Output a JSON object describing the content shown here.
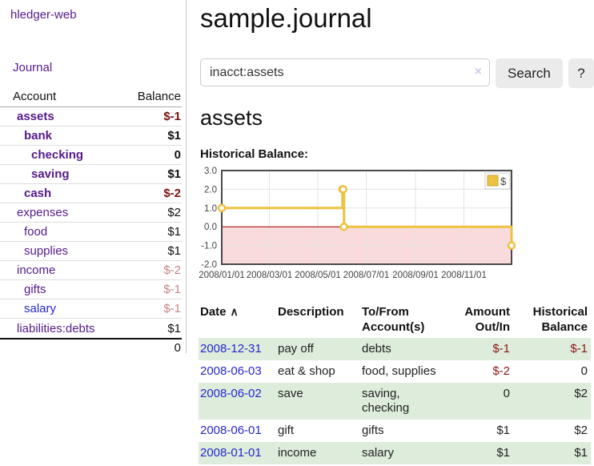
{
  "app": {
    "brand": "hledger-web"
  },
  "sidebar": {
    "nav_journal": "Journal",
    "accounts": {
      "col_account": "Account",
      "col_balance": "Balance",
      "rows": [
        {
          "name": "assets",
          "indent": 1,
          "bold": true,
          "balance": "$-1",
          "balance_color": "neg-strong",
          "link_color": "purple"
        },
        {
          "name": "bank",
          "indent": 2,
          "bold": true,
          "balance": "$1",
          "balance_color": "pos",
          "link_color": "purple"
        },
        {
          "name": "checking",
          "indent": 3,
          "bold": true,
          "balance": "0",
          "balance_color": "pos",
          "link_color": "purple"
        },
        {
          "name": "saving",
          "indent": 3,
          "bold": true,
          "balance": "$1",
          "balance_color": "pos",
          "link_color": "purple"
        },
        {
          "name": "cash",
          "indent": 2,
          "bold": true,
          "balance": "$-2",
          "balance_color": "neg-strong",
          "link_color": "purple"
        },
        {
          "name": "expenses",
          "indent": 1,
          "bold": false,
          "balance": "$2",
          "balance_color": "pos",
          "link_color": "purple"
        },
        {
          "name": "food",
          "indent": 2,
          "bold": false,
          "balance": "$1",
          "balance_color": "pos",
          "link_color": "purple"
        },
        {
          "name": "supplies",
          "indent": 2,
          "bold": false,
          "balance": "$1",
          "balance_color": "pos",
          "link_color": "purple"
        },
        {
          "name": "income",
          "indent": 1,
          "bold": false,
          "balance": "$-2",
          "balance_color": "neg-soft",
          "link_color": "purple"
        },
        {
          "name": "gifts",
          "indent": 2,
          "bold": false,
          "balance": "$-1",
          "balance_color": "neg-soft",
          "link_color": "purple"
        },
        {
          "name": "salary",
          "indent": 2,
          "bold": false,
          "balance": "$-1",
          "balance_color": "neg-soft",
          "link_color": "blue"
        },
        {
          "name": "liabilities:debts",
          "indent": 1,
          "bold": false,
          "balance": "$1",
          "balance_color": "pos",
          "link_color": "purple"
        }
      ],
      "total": "0"
    }
  },
  "main": {
    "title": "sample.journal",
    "search": {
      "value": "inacct:assets",
      "clear_icon": "×",
      "search_button": "Search",
      "help_button": "?"
    },
    "account_heading": "assets",
    "chart_title": "Historical Balance:"
  },
  "chart_data": {
    "type": "line",
    "step": true,
    "title": "Historical Balance of assets",
    "legend_position": "top-right",
    "grid": true,
    "x_min": "2008-01-01",
    "x_max": "2008-12-31",
    "ylim": [
      -2,
      3
    ],
    "y_ticks": [
      3.0,
      2.0,
      1.0,
      0.0,
      -1.0,
      -2.0
    ],
    "x_ticks": [
      {
        "date": "2008-01-01",
        "label": "2008/01/01"
      },
      {
        "date": "2008-03-01",
        "label": "2008/03/01"
      },
      {
        "date": "2008-05-01",
        "label": "2008/05/01"
      },
      {
        "date": "2008-07-01",
        "label": "2008/07/01"
      },
      {
        "date": "2008-09-01",
        "label": "2008/09/01"
      },
      {
        "date": "2008-11-01",
        "label": "2008/11/01"
      }
    ],
    "series": [
      {
        "name": "$",
        "color": "#edc240",
        "points": [
          [
            "2008-01-01",
            1
          ],
          [
            "2008-06-01",
            2
          ],
          [
            "2008-06-02",
            2
          ],
          [
            "2008-06-03",
            0
          ],
          [
            "2008-12-31",
            -1
          ]
        ]
      }
    ],
    "negative_region_fill": "#f9dbdb",
    "zero_line_color": "#990000",
    "grid_color": "#e3e3e3",
    "border_color": "#4a4a4a"
  },
  "register": {
    "headers": {
      "date": "Date",
      "sort_icon": "∧",
      "description": "Description",
      "accounts": "To/From Account(s)",
      "amount": "Amount Out/In",
      "balance": "Historical Balance"
    },
    "rows": [
      {
        "date": "2008-12-31",
        "description": "pay off",
        "accounts": "debts",
        "amount": "$-1",
        "amount_neg": true,
        "balance": "$-1",
        "balance_neg": true
      },
      {
        "date": "2008-06-03",
        "description": "eat & shop",
        "accounts": "food, supplies",
        "amount": "$-2",
        "amount_neg": true,
        "balance": "0",
        "balance_neg": false
      },
      {
        "date": "2008-06-02",
        "description": "save",
        "accounts": "saving, checking",
        "amount": "0",
        "amount_neg": false,
        "balance": "$2",
        "balance_neg": false
      },
      {
        "date": "2008-06-01",
        "description": "gift",
        "accounts": "gifts",
        "amount": "$1",
        "amount_neg": false,
        "balance": "$2",
        "balance_neg": false
      },
      {
        "date": "2008-01-01",
        "description": "income",
        "accounts": "salary",
        "amount": "$1",
        "amount_neg": false,
        "balance": "$1",
        "balance_neg": false
      }
    ]
  }
}
